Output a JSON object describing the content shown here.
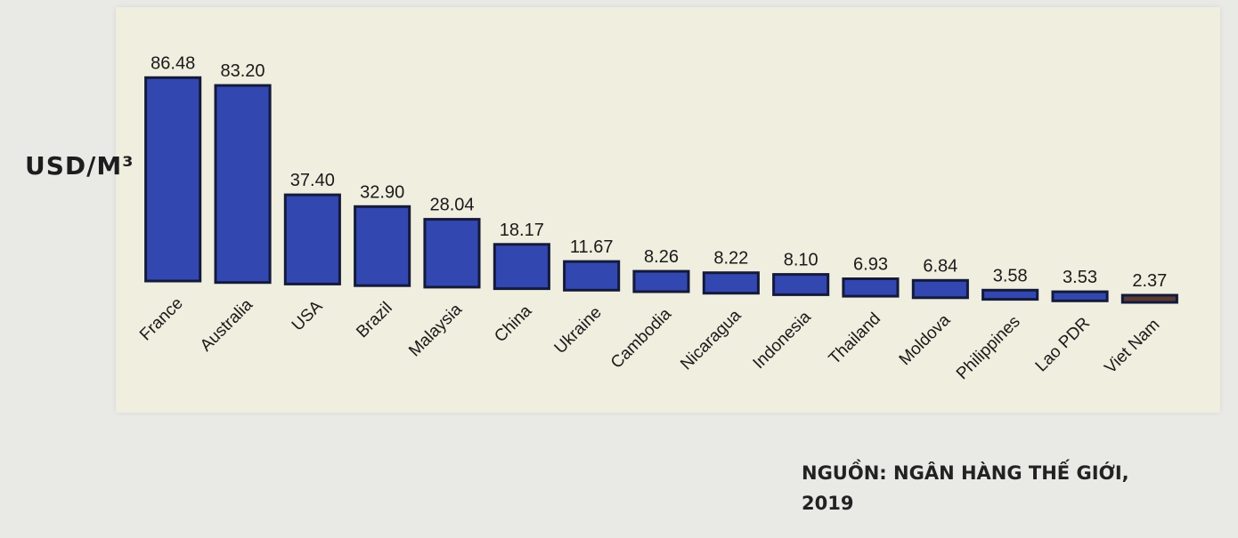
{
  "chart_data": {
    "type": "bar",
    "ylabel": "USD/M³",
    "categories": [
      "France",
      "Australia",
      "USA",
      "Brazil",
      "Malaysia",
      "China",
      "Ukraine",
      "Cambodia",
      "Nicaragua",
      "Indonesia",
      "Thailand",
      "Moldova",
      "Philippines",
      "Lao PDR",
      "Viet Nam"
    ],
    "values": [
      86.48,
      83.2,
      37.4,
      32.9,
      28.04,
      18.17,
      11.67,
      8.26,
      8.22,
      8.1,
      6.93,
      6.84,
      3.58,
      3.53,
      2.37
    ],
    "value_labels": [
      "86.48",
      "83.20",
      "37.40",
      "32.90",
      "28.04",
      "18.17",
      "11.67",
      "8.26",
      "8.22",
      "8.10",
      "6.93",
      "6.84",
      "3.58",
      "3.53",
      "2.37"
    ],
    "ylim": [
      0,
      90
    ],
    "grid": false,
    "legend": "none",
    "colors": {
      "bar": "#3347b0",
      "bar_last": "#5a3b32"
    }
  },
  "source": {
    "line1": "NGUỒN: NGÂN HÀNG THẾ GIỚI,",
    "line2": "2019"
  }
}
